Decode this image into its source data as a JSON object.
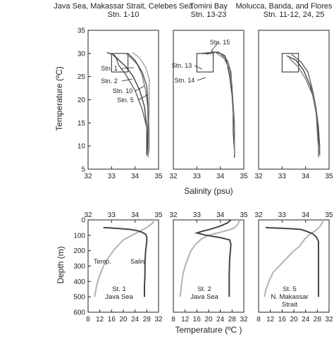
{
  "chart_data": [
    {
      "type": "line",
      "title": "Java Sea, Makassar Strait, Celebes Sea\nStn. 1-10",
      "xlabel": "Salinity (psu)",
      "ylabel": "Temperature (ºC)",
      "xlim": [
        32,
        35
      ],
      "ylim": [
        5,
        35
      ],
      "xticks": [
        "32",
        "33",
        "34",
        "35"
      ],
      "yticks": [
        "5",
        "10",
        "15",
        "20",
        "25",
        "30",
        "35"
      ],
      "box": {
        "x": [
          33,
          33.7
        ],
        "y": [
          26,
          30
        ]
      },
      "annotations": [
        "Stn. 1",
        "Stn. 2",
        "Stn. 10",
        "Stn. 5"
      ],
      "series": [
        {
          "values": [
            [
              32.8,
              30.2
            ],
            [
              33.1,
              29.7
            ],
            [
              33.3,
              28.6
            ],
            [
              33.6,
              27.2
            ],
            [
              33.9,
              25.2
            ],
            [
              34.2,
              22.0
            ],
            [
              34.4,
              18.5
            ],
            [
              34.5,
              14.0
            ],
            [
              34.5,
              10.0
            ],
            [
              34.5,
              8.0
            ]
          ]
        },
        {
          "values": [
            [
              33.0,
              30.0
            ],
            [
              33.2,
              29.0
            ],
            [
              33.3,
              27.5
            ],
            [
              33.6,
              25.5
            ],
            [
              34.0,
              22.0
            ],
            [
              34.3,
              18.0
            ],
            [
              34.5,
              14.0
            ],
            [
              34.55,
              10.0
            ],
            [
              34.55,
              8.0
            ]
          ]
        },
        {
          "values": [
            [
              33.6,
              30.0
            ],
            [
              33.8,
              29.2
            ],
            [
              34.1,
              27.6
            ],
            [
              34.3,
              25.3
            ],
            [
              34.45,
              22.0
            ],
            [
              34.55,
              18.0
            ],
            [
              34.6,
              13.5
            ],
            [
              34.6,
              9.5
            ],
            [
              34.55,
              7.5
            ]
          ]
        },
        {
          "values": [
            [
              33.9,
              30.2
            ],
            [
              34.2,
              29.0
            ],
            [
              34.45,
              27.0
            ],
            [
              34.6,
              24.5
            ],
            [
              34.6,
              21.0
            ],
            [
              34.6,
              17.0
            ],
            [
              34.55,
              13.0
            ],
            [
              34.55,
              9.0
            ],
            [
              34.55,
              7.5
            ]
          ]
        },
        {
          "values": [
            [
              33.7,
              30.0
            ],
            [
              34.0,
              28.5
            ],
            [
              34.3,
              26.0
            ],
            [
              34.5,
              23.0
            ],
            [
              34.55,
              19.0
            ],
            [
              34.55,
              15.0
            ],
            [
              34.55,
              11.0
            ],
            [
              34.5,
              8.0
            ]
          ]
        }
      ]
    },
    {
      "type": "line",
      "title": "Tomini Bay\nStn. 13-23",
      "xlabel": "Salinity (psu)",
      "ylabel": "",
      "xlim": [
        32,
        35
      ],
      "ylim": [
        5,
        35
      ],
      "xticks": [
        "32",
        "33",
        "34",
        "35"
      ],
      "yticks": [],
      "box": {
        "x": [
          33,
          33.7
        ],
        "y": [
          26,
          30
        ]
      },
      "annotations": [
        "Stn. 15",
        "Stn. 13",
        "Stn. 14"
      ],
      "series": [
        {
          "values": [
            [
              33.2,
              30.0
            ],
            [
              33.9,
              30.3
            ],
            [
              34.2,
              29.5
            ],
            [
              34.3,
              27.5
            ],
            [
              34.4,
              25.0
            ],
            [
              34.5,
              21.0
            ],
            [
              34.55,
              17.0
            ],
            [
              34.55,
              13.0
            ],
            [
              34.6,
              9.0
            ],
            [
              34.6,
              7.5
            ]
          ]
        },
        {
          "values": [
            [
              33.6,
              30.5
            ],
            [
              34.0,
              30.0
            ],
            [
              34.3,
              28.5
            ],
            [
              34.45,
              26.0
            ],
            [
              34.5,
              22.0
            ],
            [
              34.55,
              18.0
            ],
            [
              34.6,
              14.0
            ],
            [
              34.6,
              10.0
            ],
            [
              34.6,
              8.0
            ]
          ]
        },
        {
          "values": [
            [
              33.4,
              29.8
            ],
            [
              33.8,
              30.2
            ],
            [
              34.15,
              29.0
            ],
            [
              34.4,
              26.5
            ],
            [
              34.5,
              23.0
            ],
            [
              34.55,
              19.0
            ],
            [
              34.6,
              15.0
            ],
            [
              34.6,
              11.0
            ],
            [
              34.6,
              8.0
            ]
          ]
        }
      ]
    },
    {
      "type": "line",
      "title": "Molucca, Banda, and Flores Seas\nStn. 11-12, 24, 25",
      "xlabel": "Salinity (psu)",
      "ylabel": "",
      "xlim": [
        32,
        35
      ],
      "ylim": [
        5,
        35
      ],
      "xticks": [
        "32",
        "33",
        "34",
        "35"
      ],
      "yticks": [],
      "box": {
        "x": [
          33,
          33.7
        ],
        "y": [
          26,
          30
        ]
      },
      "annotations": [],
      "series": [
        {
          "values": [
            [
              33.2,
              29.5
            ],
            [
              33.6,
              28.5
            ],
            [
              33.9,
              26.5
            ],
            [
              34.2,
              23.0
            ],
            [
              34.4,
              19.0
            ],
            [
              34.5,
              15.0
            ],
            [
              34.55,
              11.0
            ],
            [
              34.55,
              8.0
            ]
          ]
        },
        {
          "values": [
            [
              33.4,
              29.8
            ],
            [
              33.8,
              28.2
            ],
            [
              34.1,
              26.0
            ],
            [
              34.3,
              22.0
            ],
            [
              34.45,
              18.0
            ],
            [
              34.55,
              14.0
            ],
            [
              34.6,
              10.0
            ],
            [
              34.6,
              8.0
            ]
          ]
        },
        {
          "values": [
            [
              33.3,
              29.0
            ],
            [
              33.7,
              27.0
            ],
            [
              34.0,
              24.5
            ],
            [
              34.3,
              21.0
            ],
            [
              34.45,
              17.0
            ],
            [
              34.5,
              13.0
            ],
            [
              34.55,
              9.0
            ],
            [
              34.55,
              7.5
            ]
          ]
        }
      ]
    },
    {
      "type": "line",
      "title": "",
      "xlabel": "Temperature (ºC )",
      "ylabel": "Depth (m)",
      "top_axis": {
        "label": "",
        "lim": [
          32,
          35
        ],
        "ticks": [
          "32",
          "33",
          "34",
          "35"
        ]
      },
      "xlim": [
        8,
        32
      ],
      "ylim": [
        600,
        0
      ],
      "xticks": [
        "8",
        "12",
        "16",
        "20",
        "24",
        "28",
        "32"
      ],
      "yticks": [
        "0",
        "100",
        "200",
        "300",
        "400",
        "500",
        "600"
      ],
      "panel_label": [
        "St. 1",
        "Java Sea"
      ],
      "series": [
        {
          "name": "Temp.",
          "axis": "bottom",
          "values": [
            [
              30.5,
              0
            ],
            [
              30.3,
              10
            ],
            [
              30.0,
              20
            ],
            [
              29.0,
              35
            ],
            [
              28.0,
              50
            ],
            [
              26.0,
              70
            ],
            [
              24.0,
              90
            ],
            [
              22.0,
              110
            ],
            [
              20.0,
              130
            ],
            [
              18.5,
              160
            ],
            [
              17.0,
              190
            ],
            [
              15.5,
              230
            ],
            [
              14.0,
              270
            ],
            [
              12.8,
              320
            ],
            [
              11.8,
              370
            ],
            [
              11.0,
              420
            ],
            [
              10.5,
              470
            ],
            [
              10.2,
              500
            ]
          ]
        },
        {
          "name": "Salin.",
          "axis": "top",
          "values": [
            [
              32.65,
              50
            ],
            [
              32.9,
              52
            ],
            [
              33.2,
              55
            ],
            [
              33.5,
              58
            ],
            [
              33.8,
              62
            ],
            [
              34.1,
              70
            ],
            [
              34.3,
              80
            ],
            [
              34.45,
              95
            ],
            [
              34.5,
              110
            ],
            [
              34.5,
              140
            ],
            [
              34.45,
              200
            ],
            [
              34.42,
              280
            ],
            [
              34.42,
              360
            ],
            [
              34.4,
              430
            ],
            [
              34.4,
              500
            ]
          ]
        }
      ]
    },
    {
      "type": "line",
      "title": "",
      "xlabel": "Temperature (ºC )",
      "ylabel": "",
      "top_axis": {
        "label": "",
        "lim": [
          32,
          35
        ],
        "ticks": [
          "32",
          "33",
          "34",
          "35"
        ]
      },
      "xlim": [
        8,
        32
      ],
      "ylim": [
        600,
        0
      ],
      "xticks": [
        "8",
        "12",
        "16",
        "20",
        "24",
        "28",
        "32"
      ],
      "yticks": [],
      "panel_label": [
        "St. 2",
        "Java Sea"
      ],
      "series": [
        {
          "name": "",
          "axis": "bottom",
          "values": [
            [
              30.5,
              0
            ],
            [
              30.2,
              20
            ],
            [
              29.5,
              40
            ],
            [
              28.5,
              55
            ],
            [
              26.0,
              70
            ],
            [
              23.0,
              85
            ],
            [
              20.0,
              100
            ],
            [
              17.5,
              125
            ],
            [
              15.5,
              160
            ],
            [
              14.0,
              200
            ],
            [
              13.0,
              250
            ],
            [
              12.0,
              300
            ],
            [
              11.2,
              360
            ],
            [
              10.8,
              420
            ],
            [
              10.5,
              470
            ],
            [
              10.3,
              500
            ]
          ]
        },
        {
          "name": "",
          "axis": "top",
          "values": [
            [
              34.45,
              0
            ],
            [
              34.3,
              20
            ],
            [
              34.0,
              40
            ],
            [
              33.6,
              60
            ],
            [
              33.2,
              75
            ],
            [
              33.0,
              85
            ],
            [
              33.4,
              100
            ],
            [
              34.0,
              115
            ],
            [
              34.4,
              130
            ],
            [
              34.45,
              160
            ],
            [
              34.4,
              250
            ],
            [
              34.38,
              350
            ],
            [
              34.38,
              430
            ],
            [
              34.38,
              500
            ]
          ]
        }
      ]
    },
    {
      "type": "line",
      "title": "",
      "xlabel": "Temperature (ºC )",
      "ylabel": "",
      "top_axis": {
        "label": "",
        "lim": [
          32,
          35
        ],
        "ticks": [
          "32",
          "33",
          "34",
          "35"
        ]
      },
      "xlim": [
        8,
        32
      ],
      "ylim": [
        600,
        0
      ],
      "xticks": [
        "8",
        "12",
        "16",
        "20",
        "24",
        "28",
        "32"
      ],
      "yticks": [],
      "panel_label": [
        "St. 5",
        "N. Makassar",
        "Strait"
      ],
      "series": [
        {
          "name": "",
          "axis": "bottom",
          "values": [
            [
              30.0,
              0
            ],
            [
              29.6,
              20
            ],
            [
              29.0,
              40
            ],
            [
              28.0,
              60
            ],
            [
              27.0,
              75
            ],
            [
              26.0,
              85
            ],
            [
              25.0,
              100
            ],
            [
              23.5,
              130
            ],
            [
              22.0,
              170
            ],
            [
              19.5,
              210
            ],
            [
              17.0,
              260
            ],
            [
              15.0,
              300
            ],
            [
              13.0,
              340
            ],
            [
              11.5,
              400
            ],
            [
              10.5,
              450
            ],
            [
              10.0,
              500
            ]
          ]
        },
        {
          "name": "",
          "axis": "top",
          "values": [
            [
              32.3,
              50
            ],
            [
              32.6,
              52
            ],
            [
              32.9,
              54
            ],
            [
              33.2,
              56
            ],
            [
              33.5,
              58
            ],
            [
              33.8,
              62
            ],
            [
              34.0,
              72
            ],
            [
              34.3,
              90
            ],
            [
              34.45,
              110
            ],
            [
              34.55,
              140
            ],
            [
              34.55,
              200
            ],
            [
              34.55,
              300
            ],
            [
              34.55,
              400
            ],
            [
              34.55,
              450
            ],
            [
              34.55,
              500
            ]
          ]
        }
      ]
    }
  ]
}
